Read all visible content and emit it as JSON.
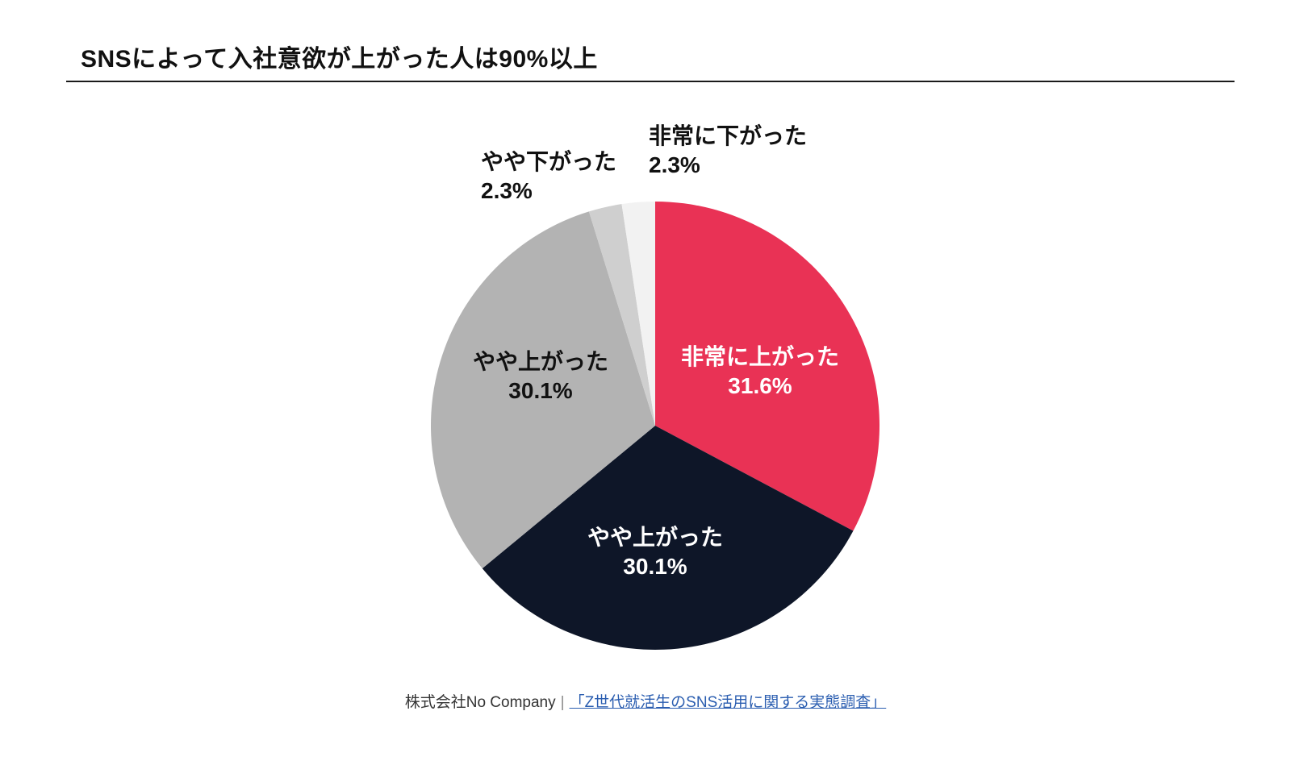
{
  "title": "SNSによって入社意欲が上がった人は90%以上",
  "colors": {
    "very_up": "#e93255",
    "somewhat_up_dark": "#0e1628",
    "somewhat_up_gray": "#b3b3b3",
    "somewhat_down": "#cfcfcf",
    "very_down": "#f2f2f2",
    "label_light": "#ffffff",
    "label_dark": "#111111"
  },
  "chart_data": {
    "type": "pie",
    "title": "SNSによって入社意欲が上がった人は90%以上",
    "slices": [
      {
        "name": "非常に上がった",
        "value": 31.6,
        "value_label": "31.6%"
      },
      {
        "name": "やや上がった",
        "value": 30.1,
        "value_label": "30.1%"
      },
      {
        "name": "やや上がった",
        "value": 30.1,
        "value_label": "30.1%"
      },
      {
        "name": "やや下がった",
        "value": 2.3,
        "value_label": "2.3%"
      },
      {
        "name": "非常に下がった",
        "value": 2.3,
        "value_label": "2.3%"
      }
    ]
  },
  "source": {
    "company": "株式会社No Company",
    "separator": "|",
    "link_text": "「Z世代就活生のSNS活用に関する実態調査」"
  }
}
